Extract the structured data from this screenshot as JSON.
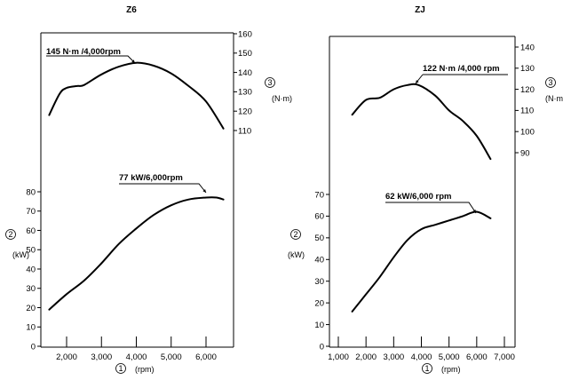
{
  "chart_data": [
    {
      "type": "line",
      "title": "Z6",
      "x": {
        "label_marker": "1",
        "unit": "(rpm)",
        "ticks": [
          2000,
          3000,
          4000,
          5000,
          6000
        ],
        "tick_labels": [
          "2,000",
          "3,000",
          "4,000",
          "5,000",
          "6,000"
        ],
        "range": [
          1400,
          6900
        ]
      },
      "power_axis": {
        "label_marker": "2",
        "unit": "(kW)",
        "ticks": [
          0,
          10,
          20,
          30,
          40,
          50,
          60,
          70,
          80
        ],
        "range": [
          0,
          80
        ]
      },
      "torque_axis": {
        "label_marker": "3",
        "unit": "(N·m)",
        "ticks": [
          110,
          120,
          130,
          140,
          150,
          160
        ],
        "range": [
          110,
          160
        ]
      },
      "series": [
        {
          "quantity": "torque",
          "unit": "N·m",
          "points": [
            [
              1500,
              118
            ],
            [
              1800,
              129
            ],
            [
              2000,
              132
            ],
            [
              2300,
              133
            ],
            [
              2500,
              133.5
            ],
            [
              3000,
              139
            ],
            [
              3500,
              143
            ],
            [
              4000,
              145
            ],
            [
              4500,
              143.5
            ],
            [
              5000,
              139.5
            ],
            [
              5500,
              133
            ],
            [
              6000,
              125
            ],
            [
              6500,
              111
            ]
          ]
        },
        {
          "quantity": "power",
          "unit": "kW",
          "points": [
            [
              1500,
              19
            ],
            [
              2000,
              27
            ],
            [
              2500,
              34
            ],
            [
              3000,
              43
            ],
            [
              3500,
              53
            ],
            [
              4000,
              61
            ],
            [
              4500,
              68
            ],
            [
              5000,
              73
            ],
            [
              5500,
              76
            ],
            [
              6000,
              77
            ],
            [
              6300,
              77
            ],
            [
              6500,
              76
            ]
          ]
        }
      ],
      "annotations": [
        {
          "text": "145 N·m /4,000rpm",
          "series": "torque",
          "x": 4000,
          "y": 145
        },
        {
          "text": "77 kW/6,000rpm",
          "series": "power",
          "x": 6000,
          "y": 77
        }
      ]
    },
    {
      "type": "line",
      "title": "ZJ",
      "x": {
        "label_marker": "1",
        "unit": "(rpm)",
        "ticks": [
          1000,
          2000,
          3000,
          4000,
          5000,
          6000,
          7000
        ],
        "tick_labels": [
          "1,000",
          "2,000",
          "3,000",
          "4,000",
          "5,000",
          "6,000",
          "7,000"
        ],
        "range": [
          700,
          7300
        ]
      },
      "power_axis": {
        "label_marker": "2",
        "unit": "(kW)",
        "ticks": [
          0,
          10,
          20,
          30,
          40,
          50,
          60,
          70
        ],
        "range": [
          0,
          70
        ]
      },
      "torque_axis": {
        "label_marker": "3",
        "unit": "(N·m)",
        "ticks": [
          90,
          100,
          110,
          120,
          130,
          140
        ],
        "range": [
          90,
          140
        ]
      },
      "series": [
        {
          "quantity": "torque",
          "unit": "N·m",
          "points": [
            [
              1500,
              108
            ],
            [
              2000,
              115
            ],
            [
              2500,
              116
            ],
            [
              3000,
              120
            ],
            [
              3500,
              122
            ],
            [
              3900,
              122
            ],
            [
              4500,
              117
            ],
            [
              5000,
              110
            ],
            [
              5500,
              105
            ],
            [
              6000,
              98
            ],
            [
              6500,
              87
            ]
          ]
        },
        {
          "quantity": "power",
          "unit": "kW",
          "points": [
            [
              1500,
              16
            ],
            [
              2000,
              24
            ],
            [
              2500,
              32
            ],
            [
              3000,
              41
            ],
            [
              3500,
              49
            ],
            [
              4000,
              54
            ],
            [
              4500,
              56
            ],
            [
              5000,
              58
            ],
            [
              5500,
              60
            ],
            [
              6000,
              62
            ],
            [
              6500,
              59
            ]
          ]
        }
      ],
      "annotations": [
        {
          "text": "122 N·m /4,000 rpm",
          "series": "torque",
          "x": 3900,
          "y": 122
        },
        {
          "text": "62 kW/6,000 rpm",
          "series": "power",
          "x": 6000,
          "y": 62
        }
      ]
    }
  ]
}
